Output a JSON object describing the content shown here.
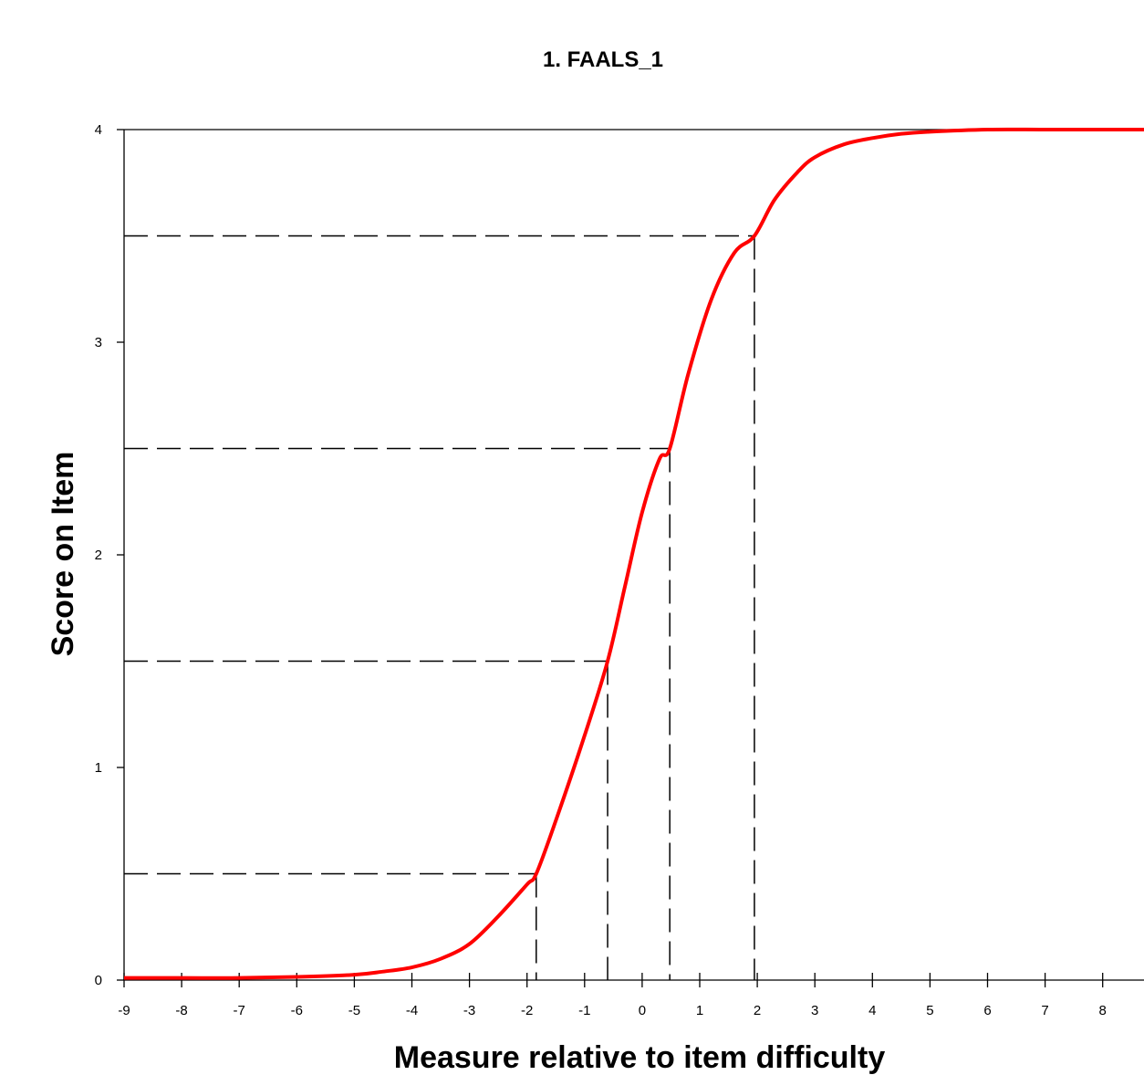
{
  "chart_data": {
    "type": "line",
    "title": "1. FAALS_1",
    "xlabel": "Measure relative to item difficulty",
    "ylabel": "Score on Item",
    "xlim": [
      -9,
      9
    ],
    "ylim": [
      0,
      4
    ],
    "x_ticks": [
      "-9",
      "-8",
      "-7",
      "-6",
      "-5",
      "-4",
      "-3",
      "-2",
      "-1",
      "0",
      "1",
      "2",
      "3",
      "4",
      "5",
      "6",
      "7",
      "8"
    ],
    "y_ticks": [
      "0",
      "1",
      "2",
      "3",
      "4"
    ],
    "series": [
      {
        "color": "#ff0000",
        "x": [
          -9,
          -8,
          -7,
          -6,
          -5,
          -4.5,
          -4,
          -3.5,
          -3,
          -2.5,
          -2,
          -1.84,
          -1.5,
          -1,
          -0.6,
          -0.3,
          0,
          0.3,
          0.48,
          0.8,
          1.2,
          1.6,
          1.95,
          2.3,
          2.7,
          3,
          3.5,
          4,
          4.5,
          5,
          6,
          7,
          8,
          9
        ],
        "y": [
          0.01,
          0.01,
          0.01,
          0.015,
          0.025,
          0.04,
          0.06,
          0.1,
          0.17,
          0.3,
          0.45,
          0.5,
          0.75,
          1.15,
          1.5,
          1.85,
          2.2,
          2.45,
          2.5,
          2.85,
          3.2,
          3.42,
          3.5,
          3.67,
          3.8,
          3.87,
          3.93,
          3.96,
          3.98,
          3.99,
          4.0,
          4.0,
          4.0,
          4.0
        ]
      }
    ],
    "reference_lines": [
      {
        "y": 0.5,
        "x": -1.84
      },
      {
        "y": 1.5,
        "x": -0.6
      },
      {
        "y": 2.5,
        "x": 0.48
      },
      {
        "y": 3.5,
        "x": 1.95
      }
    ],
    "grid": false
  }
}
